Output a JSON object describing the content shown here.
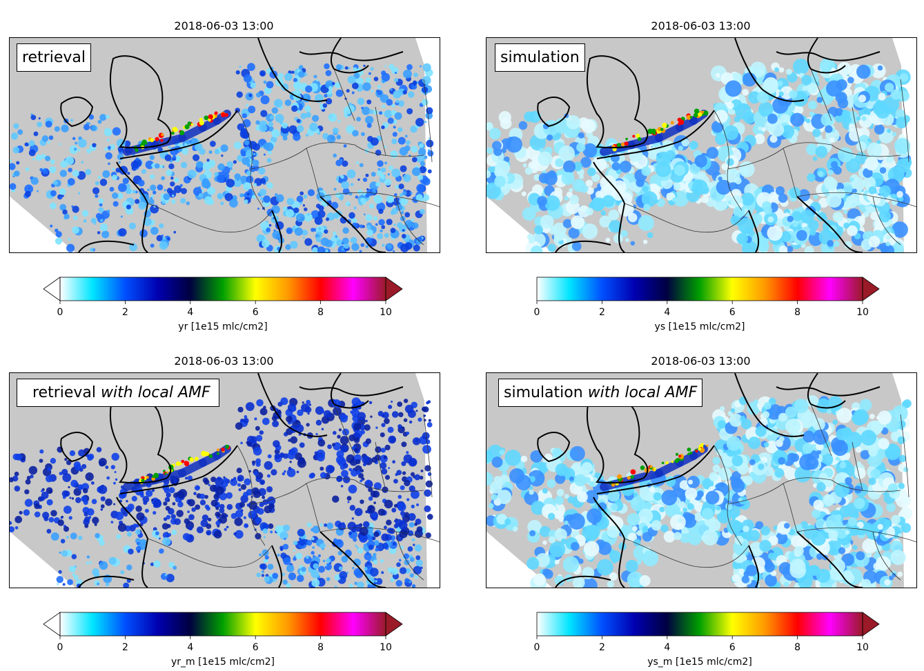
{
  "colormap": {
    "stops": [
      "#ffffff",
      "#00e5ff",
      "#0050ff",
      "#0000b0",
      "#000040",
      "#00a000",
      "#ffff00",
      "#ff9900",
      "#ff0000",
      "#ff00ff",
      "#9a1a28"
    ],
    "background_gray": "#c8c8c8"
  },
  "chart_data": [
    {
      "type": "heatmap",
      "title": "2018-06-03 13:00",
      "annotation_plain": "retrieval",
      "annotation_italic": "",
      "colorbar": {
        "label": "yr [1e15 mlc/cm2]",
        "ticks": [
          0,
          2,
          4,
          6,
          8,
          10
        ],
        "range": [
          0,
          10
        ],
        "extend": "both"
      }
    },
    {
      "type": "heatmap",
      "title": "2018-06-03 13:00",
      "annotation_plain": "simulation",
      "annotation_italic": "",
      "colorbar": {
        "label": "ys [1e15 mlc/cm2]",
        "ticks": [
          0,
          2,
          4,
          6,
          8,
          10
        ],
        "range": [
          0,
          10
        ],
        "extend": "max"
      }
    },
    {
      "type": "heatmap",
      "title": "2018-06-03 13:00",
      "annotation_plain": "retrieval ",
      "annotation_italic": "with local AMF",
      "colorbar": {
        "label": "yr_m [1e15 mlc/cm2]",
        "ticks": [
          0,
          2,
          4,
          6,
          8,
          10
        ],
        "range": [
          0,
          10
        ],
        "extend": "both"
      }
    },
    {
      "type": "heatmap",
      "title": "2018-06-03 13:00",
      "annotation_plain": "simulation ",
      "annotation_italic": "with local AMF",
      "colorbar": {
        "label": "ys_m [1e15 mlc/cm2]",
        "ticks": [
          0,
          2,
          4,
          6,
          8,
          10
        ],
        "range": [
          0,
          10
        ],
        "extend": "max"
      }
    }
  ]
}
